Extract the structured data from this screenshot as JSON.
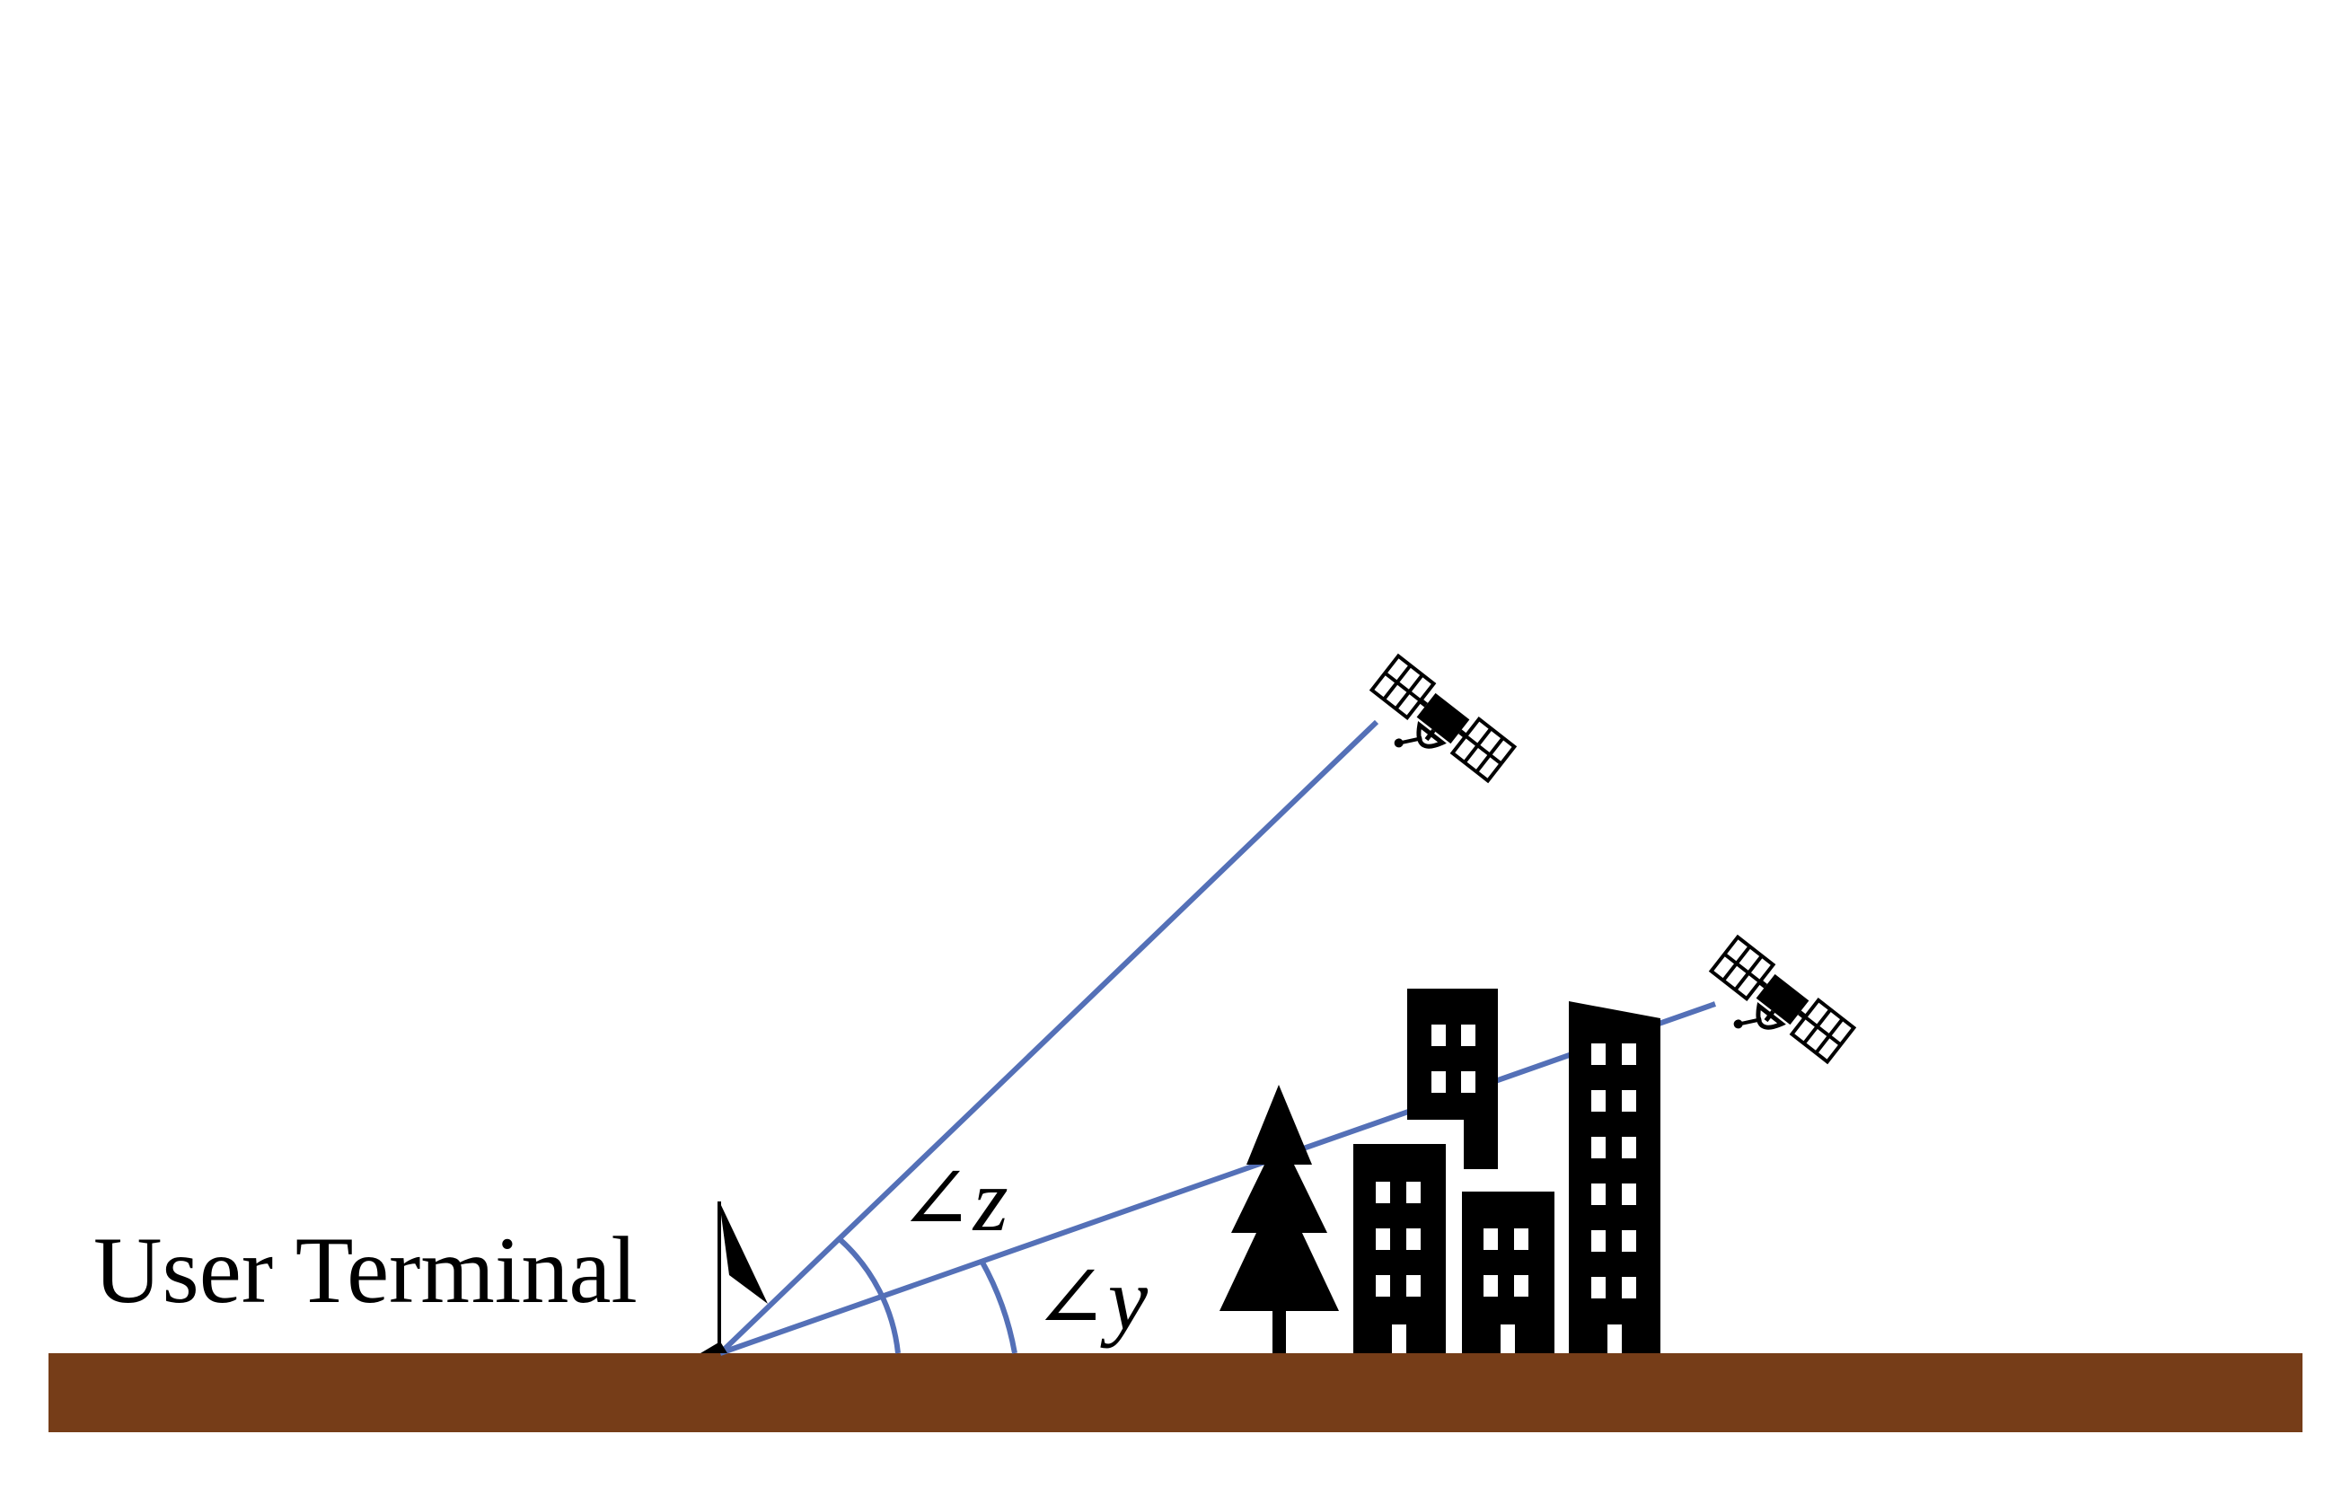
{
  "labels": {
    "terminal": "User Terminal",
    "angle_z": "∠z",
    "angle_y": "∠y"
  },
  "colors": {
    "ground": "#763D18",
    "line": "#5470B7",
    "ink": "#000000",
    "background": "#FFFFFF"
  },
  "icons": {
    "satellite": "satellite-icon",
    "antenna": "antenna-icon",
    "tree": "tree-icon",
    "building": "building-icon"
  }
}
